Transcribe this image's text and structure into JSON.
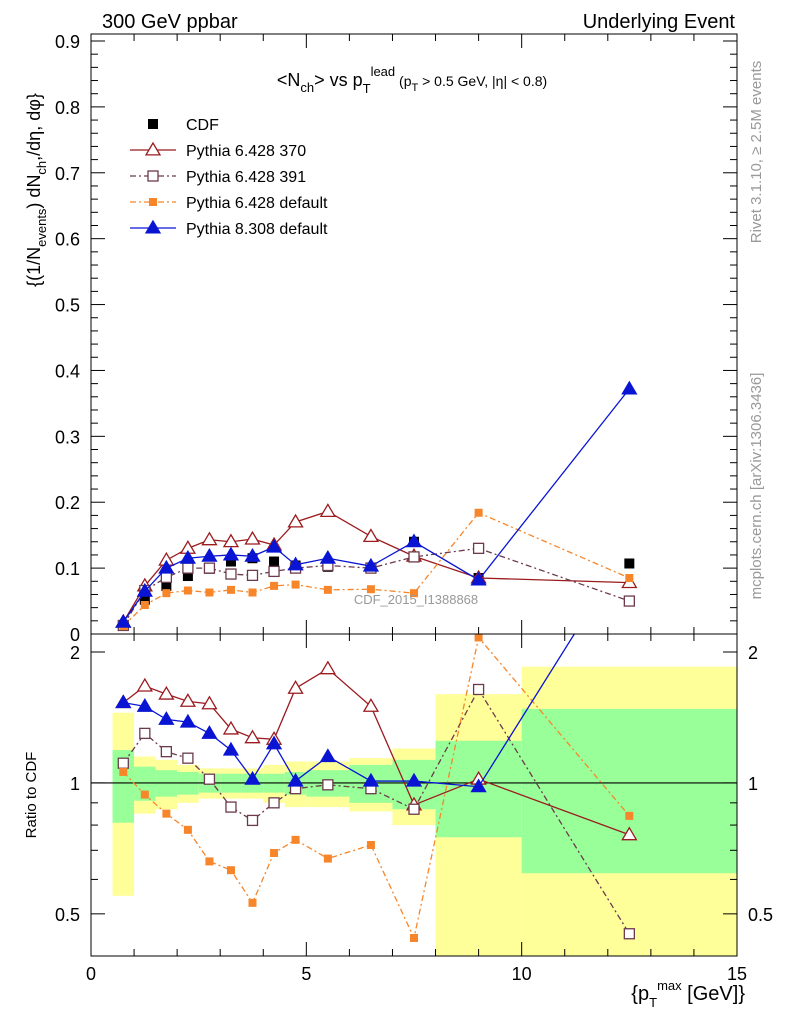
{
  "header": {
    "left": "300 GeV ppbar",
    "right": "Underlying Event"
  },
  "side": {
    "rivet": "Rivet 3.1.10, ≥ 2.5M events",
    "site": "mcplots.cern.ch [arXiv:1306.3436]"
  },
  "watermark": "CDF_2015_I1388868",
  "colors": {
    "cdf": "#000000",
    "py370": "#9b1b1f",
    "py391": "#6b3a4c",
    "py64def": "#f7862a",
    "py8def": "#0a15d4",
    "band_yellow": "#ffff99",
    "band_green": "#99ff99"
  },
  "chart_data": [
    {
      "type": "line",
      "title": "<N_ch> vs p_T^lead (p_T > 0.5 GeV, |η| < 0.8)",
      "ylabel": "{(1/N_events) dN_ch^,/dη, dφ}",
      "xlim": [
        0,
        15
      ],
      "ylim": [
        0,
        0.9
      ],
      "yticks": [
        "0",
        "0.1",
        "0.2",
        "0.3",
        "0.4",
        "0.5",
        "0.6",
        "0.7",
        "0.8",
        "0.9"
      ],
      "legend_position": "top-left",
      "x": [
        0.75,
        1.25,
        1.75,
        2.25,
        2.75,
        3.25,
        3.75,
        4.25,
        4.75,
        5.5,
        6.5,
        7.5,
        9.0,
        12.5
      ],
      "series": [
        {
          "name": "CDF",
          "values": [
            0.013,
            0.052,
            0.073,
            0.088,
            0.099,
            0.11,
            0.115,
            0.11,
            0.104,
            0.102,
            0.101,
            0.14,
            0.085,
            0.107
          ]
        },
        {
          "name": "Pythia 6.428 370",
          "values": [
            0.018,
            0.073,
            0.112,
            0.13,
            0.143,
            0.14,
            0.144,
            0.135,
            0.17,
            0.186,
            0.148,
            0.118,
            0.085,
            0.078
          ]
        },
        {
          "name": "Pythia 6.428 391",
          "values": [
            0.013,
            0.066,
            0.086,
            0.1,
            0.1,
            0.091,
            0.089,
            0.095,
            0.1,
            0.104,
            0.1,
            0.117,
            0.13,
            0.05
          ]
        },
        {
          "name": "Pythia 6.428 default",
          "values": [
            0.012,
            0.044,
            0.062,
            0.066,
            0.063,
            0.067,
            0.063,
            0.073,
            0.075,
            0.067,
            0.068,
            0.062,
            0.184,
            0.085
          ]
        },
        {
          "name": "Pythia 8.308 default",
          "values": [
            0.018,
            0.065,
            0.1,
            0.115,
            0.118,
            0.12,
            0.118,
            0.132,
            0.105,
            0.115,
            0.103,
            0.14,
            0.082,
            0.372
          ]
        }
      ]
    },
    {
      "type": "line",
      "ylabel": "Ratio to CDF",
      "xlabel": "{p_T^max [GeV]}",
      "xlim": [
        0,
        15
      ],
      "ylim": [
        0.4,
        2.2
      ],
      "yscale": "log",
      "xticks": [
        "0",
        "5",
        "10",
        "15"
      ],
      "yticks": [
        "0.5",
        "1",
        "2"
      ],
      "reference_line": 1,
      "x": [
        0.75,
        1.25,
        1.75,
        2.25,
        2.75,
        3.25,
        3.75,
        4.25,
        4.75,
        5.5,
        6.5,
        7.5,
        9.0,
        12.5
      ],
      "bin_edges": [
        0.5,
        1.0,
        1.5,
        2.0,
        2.5,
        3.0,
        3.5,
        4.0,
        4.5,
        5.0,
        6.0,
        7.0,
        8.0,
        10.0,
        15.0
      ],
      "band_yellow": {
        "lo": [
          0.55,
          0.85,
          0.87,
          0.9,
          0.92,
          0.92,
          0.92,
          0.9,
          0.88,
          0.88,
          0.86,
          0.8,
          0.4,
          0.4
        ],
        "hi": [
          1.45,
          1.15,
          1.13,
          1.1,
          1.08,
          1.08,
          1.08,
          1.1,
          1.12,
          1.12,
          1.14,
          1.2,
          1.6,
          1.85
        ]
      },
      "band_green": {
        "lo": [
          0.81,
          0.91,
          0.93,
          0.94,
          0.95,
          0.95,
          0.95,
          0.95,
          0.94,
          0.93,
          0.9,
          0.87,
          0.75,
          0.62
        ],
        "hi": [
          1.19,
          1.09,
          1.07,
          1.06,
          1.05,
          1.05,
          1.05,
          1.05,
          1.06,
          1.07,
          1.1,
          1.13,
          1.25,
          1.48
        ]
      },
      "series": [
        {
          "name": "Pythia 6.428 370",
          "values": [
            1.53,
            1.67,
            1.6,
            1.54,
            1.52,
            1.33,
            1.27,
            1.26,
            1.65,
            1.83,
            1.5,
            0.89,
            1.02,
            0.76
          ]
        },
        {
          "name": "Pythia 6.428 391",
          "values": [
            1.11,
            1.3,
            1.18,
            1.14,
            1.02,
            0.88,
            0.82,
            0.9,
            0.97,
            0.99,
            0.97,
            0.87,
            1.64,
            0.45
          ]
        },
        {
          "name": "Pythia 6.428 default",
          "values": [
            1.06,
            0.94,
            0.85,
            0.78,
            0.66,
            0.63,
            0.53,
            0.69,
            0.74,
            0.67,
            0.72,
            0.44,
            2.16,
            0.84
          ]
        },
        {
          "name": "Pythia 8.308 default",
          "values": [
            1.53,
            1.5,
            1.4,
            1.38,
            1.3,
            1.19,
            1.02,
            1.23,
            1.01,
            1.15,
            1.01,
            1.01,
            0.98,
            3.5
          ]
        }
      ]
    }
  ]
}
